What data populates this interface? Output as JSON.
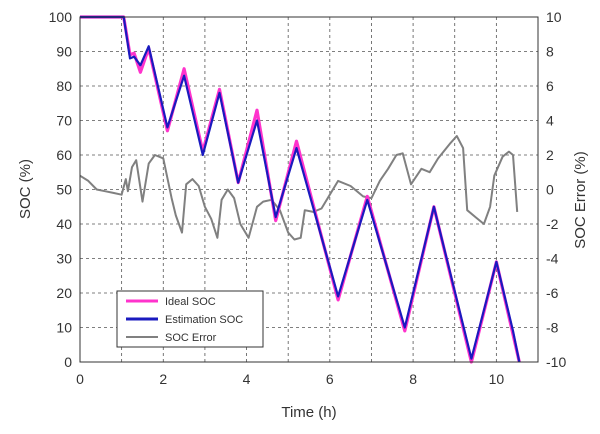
{
  "chart_data": {
    "type": "line",
    "title": "",
    "xlabel": "Time (h)",
    "ylabel": "SOC (%)",
    "y2label": "SOC Error (%)",
    "xlim": [
      0,
      11
    ],
    "ylim": [
      0,
      100
    ],
    "y2lim": [
      -10,
      10
    ],
    "xticks": [
      0,
      2,
      4,
      6,
      8,
      10
    ],
    "yticks": [
      0,
      10,
      20,
      30,
      40,
      50,
      60,
      70,
      80,
      90,
      100
    ],
    "y2ticks": [
      -10,
      -8,
      -6,
      -4,
      -2,
      0,
      2,
      4,
      6,
      8,
      10
    ],
    "grid": true,
    "legend_position": "bottom-left",
    "series": [
      {
        "name": "Ideal SOC",
        "axis": "left",
        "color": "#ff33cc",
        "points": [
          [
            0,
            100
          ],
          [
            1.05,
            100
          ],
          [
            1.2,
            89
          ],
          [
            1.3,
            89.5
          ],
          [
            1.45,
            84
          ],
          [
            1.65,
            91
          ],
          [
            2.1,
            67
          ],
          [
            2.5,
            85
          ],
          [
            2.95,
            61
          ],
          [
            3.35,
            79
          ],
          [
            3.8,
            52
          ],
          [
            4.25,
            73
          ],
          [
            4.7,
            41
          ],
          [
            5.2,
            64
          ],
          [
            6.2,
            18
          ],
          [
            6.9,
            48
          ],
          [
            7.8,
            9
          ],
          [
            8.5,
            45
          ],
          [
            9.4,
            0
          ],
          [
            10,
            29
          ],
          [
            10.4,
            8
          ],
          [
            10.55,
            0
          ]
        ]
      },
      {
        "name": "Estimation SOC",
        "axis": "left",
        "color": "#1a1abf",
        "points": [
          [
            0,
            100
          ],
          [
            1.05,
            100
          ],
          [
            1.2,
            88
          ],
          [
            1.3,
            88.5
          ],
          [
            1.45,
            86
          ],
          [
            1.65,
            91.5
          ],
          [
            2.1,
            68
          ],
          [
            2.5,
            83
          ],
          [
            2.95,
            60
          ],
          [
            3.35,
            78
          ],
          [
            3.8,
            52
          ],
          [
            4.25,
            70
          ],
          [
            4.7,
            42
          ],
          [
            5.2,
            62
          ],
          [
            6.2,
            19
          ],
          [
            6.9,
            47
          ],
          [
            7.8,
            10
          ],
          [
            8.5,
            45
          ],
          [
            9.4,
            1
          ],
          [
            10,
            29
          ],
          [
            10.4,
            9
          ],
          [
            10.55,
            -1
          ]
        ]
      },
      {
        "name": "SOC Error",
        "axis": "right",
        "color": "#808080",
        "points": [
          [
            0,
            0.8
          ],
          [
            0.2,
            0.5
          ],
          [
            0.4,
            0
          ],
          [
            0.6,
            -0.1
          ],
          [
            0.8,
            -0.2
          ],
          [
            1,
            -0.3
          ],
          [
            1.1,
            0.6
          ],
          [
            1.15,
            -0.1
          ],
          [
            1.25,
            1.3
          ],
          [
            1.35,
            1.7
          ],
          [
            1.5,
            -0.7
          ],
          [
            1.65,
            1.5
          ],
          [
            1.8,
            2
          ],
          [
            2,
            1.8
          ],
          [
            2.2,
            -0.5
          ],
          [
            2.3,
            -1.5
          ],
          [
            2.45,
            -2.5
          ],
          [
            2.55,
            0.3
          ],
          [
            2.7,
            0.6
          ],
          [
            2.85,
            0.2
          ],
          [
            3,
            -1
          ],
          [
            3.15,
            -1.7
          ],
          [
            3.3,
            -2.8
          ],
          [
            3.4,
            -0.6
          ],
          [
            3.55,
            0
          ],
          [
            3.7,
            -0.5
          ],
          [
            3.85,
            -2
          ],
          [
            4.05,
            -2.8
          ],
          [
            4.25,
            -1
          ],
          [
            4.4,
            -0.7
          ],
          [
            4.6,
            -0.6
          ],
          [
            4.8,
            -1.2
          ],
          [
            5,
            -2.5
          ],
          [
            5.15,
            -2.9
          ],
          [
            5.3,
            -2.8
          ],
          [
            5.4,
            -1.2
          ],
          [
            5.6,
            -1.3
          ],
          [
            5.8,
            -1.1
          ],
          [
            6,
            -0.3
          ],
          [
            6.2,
            0.5
          ],
          [
            6.5,
            0.2
          ],
          [
            6.8,
            -0.4
          ],
          [
            7,
            -0.5
          ],
          [
            7.2,
            0.5
          ],
          [
            7.4,
            1.2
          ],
          [
            7.6,
            2
          ],
          [
            7.75,
            2.1
          ],
          [
            7.95,
            0.3
          ],
          [
            8.2,
            1.2
          ],
          [
            8.4,
            1
          ],
          [
            8.6,
            1.8
          ],
          [
            8.9,
            2.7
          ],
          [
            9.05,
            3.1
          ],
          [
            9.2,
            2.4
          ],
          [
            9.3,
            -1.2
          ],
          [
            9.5,
            -1.6
          ],
          [
            9.7,
            -2
          ],
          [
            9.85,
            -1
          ],
          [
            9.95,
            0.8
          ],
          [
            10.15,
            1.9
          ],
          [
            10.3,
            2.2
          ],
          [
            10.4,
            2
          ],
          [
            10.5,
            -1.3
          ]
        ]
      }
    ]
  }
}
